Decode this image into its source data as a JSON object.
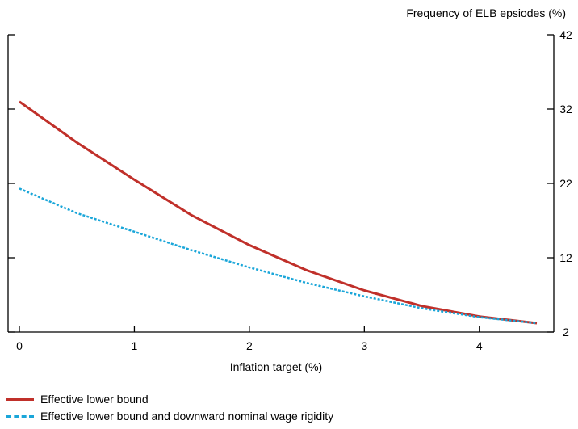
{
  "chart_data": {
    "type": "line",
    "xlabel": "Inflation target (%)",
    "ylabel": "Frequency of ELB epsiodes (%)",
    "xlim": [
      0,
      4.5
    ],
    "ylim": [
      2,
      42
    ],
    "x_ticks": [
      0,
      1,
      2,
      3,
      4
    ],
    "y_ticks": [
      2,
      12,
      22,
      32,
      42
    ],
    "y_axis_side": "right",
    "grid": false,
    "legend_position": "bottom-left",
    "series": [
      {
        "name": "Effective lower bound",
        "color": "#c0302a",
        "style": "solid",
        "x": [
          0,
          0.5,
          1,
          1.5,
          2,
          2.5,
          3,
          3.5,
          4,
          4.5
        ],
        "y": [
          33.0,
          27.5,
          22.5,
          17.7,
          13.7,
          10.3,
          7.6,
          5.5,
          4.1,
          3.2
        ]
      },
      {
        "name": "Effective lower bound and downward nominal wage rigidity",
        "color": "#1aa6d9",
        "style": "dashed",
        "x": [
          0,
          0.5,
          1,
          1.5,
          2,
          2.5,
          3,
          3.5,
          4,
          4.5
        ],
        "y": [
          21.3,
          18.0,
          15.5,
          13.0,
          10.7,
          8.6,
          6.8,
          5.2,
          4.0,
          3.2
        ]
      }
    ]
  }
}
